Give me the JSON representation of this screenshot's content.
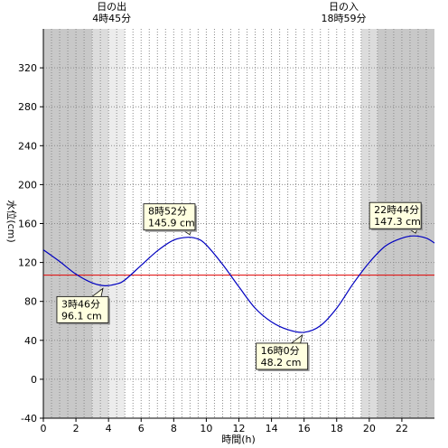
{
  "chart_data": {
    "type": "line",
    "xlabel": "時間(h)",
    "ylabel": "水位(cm)",
    "xlim": [
      0,
      24
    ],
    "ylim": [
      -40,
      360
    ],
    "x_ticks": [
      0,
      2,
      4,
      6,
      8,
      10,
      12,
      14,
      16,
      18,
      20,
      22
    ],
    "y_ticks": [
      -40,
      0,
      40,
      80,
      120,
      160,
      200,
      240,
      280,
      320
    ],
    "vertical_grid_step_h": 0.5,
    "grid": true,
    "reference_line": {
      "y": 107,
      "color": "#e00000"
    },
    "sunrise": {
      "label": "日の出",
      "time": "4時45分",
      "hour": 4.75
    },
    "sunset": {
      "label": "日の入",
      "time": "18時59分",
      "hour": 18.983
    },
    "shading": [
      {
        "from": 0,
        "to": 3.0,
        "color": "#c8c8c8"
      },
      {
        "from": 3.0,
        "to": 4.0,
        "color": "#dcdcdc"
      },
      {
        "from": 4.0,
        "to": 5.0,
        "color": "#ececec"
      },
      {
        "from": 19.5,
        "to": 20.5,
        "color": "#dcdcdc"
      },
      {
        "from": 20.5,
        "to": 24,
        "color": "#c8c8c8"
      }
    ],
    "series": [
      {
        "color": "#0000c0",
        "x": [
          0,
          1,
          2,
          3,
          3.767,
          4.5,
          5,
          6,
          7,
          8,
          8.867,
          9.5,
          10,
          11,
          12,
          13,
          14,
          15,
          16,
          17,
          18,
          19,
          20,
          21,
          22,
          22.733,
          23.5,
          24
        ],
        "y": [
          133,
          121,
          108,
          99,
          96.1,
          98,
          102,
          117,
          132,
          143,
          145.9,
          144,
          138,
          118,
          95,
          73,
          59,
          51,
          48.2,
          55,
          73,
          98,
          120,
          137,
          145,
          147.3,
          145,
          140
        ]
      }
    ],
    "extrema": [
      {
        "hour": 3.767,
        "time": "3時46分",
        "value": "96.1 cm"
      },
      {
        "hour": 8.867,
        "time": "8時52分",
        "value": "145.9 cm"
      },
      {
        "hour": 16.0,
        "time": "16時0分",
        "value": "48.2 cm"
      },
      {
        "hour": 22.733,
        "time": "22時44分",
        "value": "147.3 cm"
      }
    ]
  }
}
